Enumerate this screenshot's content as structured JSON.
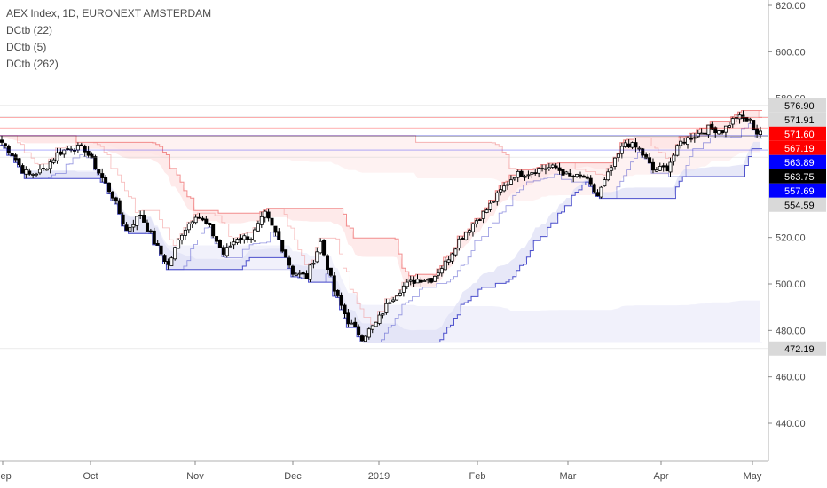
{
  "legend": {
    "title": "AEX Index, 1D, EURONEXT AMSTERDAM",
    "line1": "DCtb (22)",
    "line2": "DCtb (5)",
    "line3": "DCtb (262)"
  },
  "colors": {
    "bull": "#ffffff",
    "bear": "#000000",
    "upper_band": "#f28c8c",
    "upper_fill": "#fde3e3",
    "lower_band": "#4b4fcc",
    "lower_fill": "#dfe0f6",
    "long_upper": "#f5b3b3",
    "long_lower": "#c9cbef"
  },
  "chart_data": {
    "type": "candlestick",
    "title": "AEX Index, 1D, EURONEXT AMSTERDAM",
    "y_axis": {
      "ticks": [
        "620.00",
        "600.00",
        "580.00",
        "520.00",
        "500.00",
        "480.00",
        "460.00",
        "440.00"
      ],
      "ylim": [
        420,
        622
      ]
    },
    "x_axis": {
      "ticks": [
        "Sep",
        "Oct",
        "Nov",
        "Dec",
        "2019",
        "Feb",
        "Mar",
        "Apr",
        "May"
      ]
    },
    "price_tags": [
      {
        "label": "576.90",
        "value": 576.9,
        "bg": "#d9d9d9",
        "fg": "#000000"
      },
      {
        "label": "571.91",
        "value": 571.91,
        "bg": "#d9d9d9",
        "fg": "#000000"
      },
      {
        "label": "571.60",
        "value": 571.6,
        "bg": "#ff0000",
        "fg": "#ffffff"
      },
      {
        "label": "567.19",
        "value": 567.19,
        "bg": "#ff0000",
        "fg": "#ffffff"
      },
      {
        "label": "563.89",
        "value": 563.89,
        "bg": "#0000ff",
        "fg": "#ffffff"
      },
      {
        "label": "563.75",
        "value": 563.75,
        "bg": "#000000",
        "fg": "#ffffff"
      },
      {
        "label": "557.69",
        "value": 557.69,
        "bg": "#0000ff",
        "fg": "#ffffff"
      },
      {
        "label": "554.59",
        "value": 554.59,
        "bg": "#d9d9d9",
        "fg": "#000000"
      },
      {
        "label": "472.19",
        "value": 472.19,
        "bg": "#d9d9d9",
        "fg": "#000000"
      }
    ],
    "close_anchors": [
      [
        0,
        561
      ],
      [
        3,
        556
      ],
      [
        6,
        549
      ],
      [
        8,
        547
      ],
      [
        12,
        549
      ],
      [
        16,
        556
      ],
      [
        20,
        559
      ],
      [
        24,
        558
      ],
      [
        28,
        548
      ],
      [
        32,
        538
      ],
      [
        36,
        523
      ],
      [
        40,
        530
      ],
      [
        44,
        518
      ],
      [
        48,
        508
      ],
      [
        52,
        522
      ],
      [
        56,
        530
      ],
      [
        60,
        524
      ],
      [
        64,
        513
      ],
      [
        68,
        520
      ],
      [
        72,
        520
      ],
      [
        76,
        530
      ],
      [
        80,
        519
      ],
      [
        84,
        505
      ],
      [
        88,
        503
      ],
      [
        92,
        518
      ],
      [
        96,
        497
      ],
      [
        100,
        484
      ],
      [
        104,
        477
      ],
      [
        108,
        483
      ],
      [
        112,
        493
      ],
      [
        116,
        499
      ],
      [
        120,
        502
      ],
      [
        124,
        502
      ],
      [
        128,
        509
      ],
      [
        132,
        519
      ],
      [
        136,
        526
      ],
      [
        140,
        532
      ],
      [
        144,
        540
      ],
      [
        148,
        547
      ],
      [
        152,
        548
      ],
      [
        156,
        550
      ],
      [
        160,
        550
      ],
      [
        164,
        546
      ],
      [
        168,
        546
      ],
      [
        172,
        538
      ],
      [
        176,
        550
      ],
      [
        180,
        561
      ],
      [
        184,
        558
      ],
      [
        188,
        549
      ],
      [
        192,
        550
      ],
      [
        196,
        561
      ],
      [
        200,
        564
      ],
      [
        204,
        567
      ],
      [
        208,
        566
      ],
      [
        212,
        572
      ],
      [
        216,
        570
      ],
      [
        218,
        565
      ],
      [
        219,
        566
      ]
    ]
  }
}
